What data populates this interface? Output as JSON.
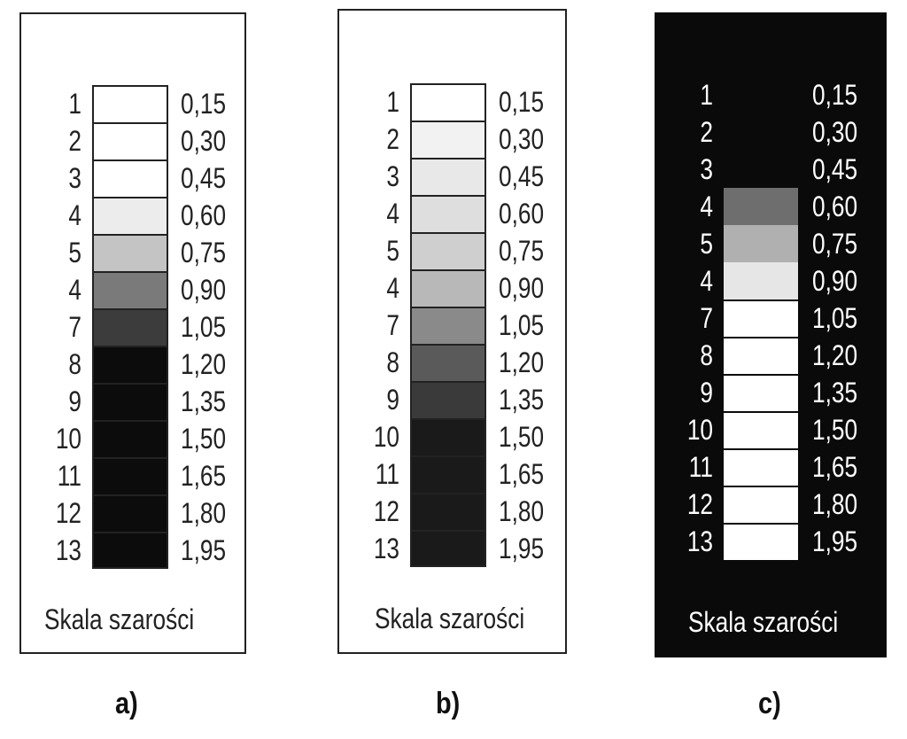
{
  "caption": "Skala szarości",
  "panels": [
    {
      "tag": "a)",
      "numbers": [
        "1",
        "2",
        "3",
        "4",
        "5",
        "4",
        "7",
        "8",
        "9",
        "10",
        "11",
        "12",
        "13"
      ],
      "values": [
        "0,15",
        "0,30",
        "0,45",
        "0,60",
        "0,75",
        "0,90",
        "1,05",
        "1,20",
        "1,35",
        "1,50",
        "1,65",
        "1,80",
        "1,95"
      ],
      "colors": [
        "#ffffff",
        "#ffffff",
        "#ffffff",
        "#ececec",
        "#c4c4c4",
        "#7a7a7a",
        "#3c3c3c",
        "#0c0c0c",
        "#0c0c0c",
        "#0c0c0c",
        "#0c0c0c",
        "#0c0c0c",
        "#0c0c0c"
      ]
    },
    {
      "tag": "b)",
      "numbers": [
        "1",
        "2",
        "3",
        "4",
        "5",
        "4",
        "7",
        "8",
        "9",
        "10",
        "11",
        "12",
        "13"
      ],
      "values": [
        "0,15",
        "0,30",
        "0,45",
        "0,60",
        "0,75",
        "0,90",
        "1,05",
        "1,20",
        "1,35",
        "1,50",
        "1,65",
        "1,80",
        "1,95"
      ],
      "colors": [
        "#ffffff",
        "#f2f2f2",
        "#e8e8e8",
        "#dedede",
        "#cfcfcf",
        "#b8b8b8",
        "#8a8a8a",
        "#5a5a5a",
        "#3a3a3a",
        "#1a1a1a",
        "#1a1a1a",
        "#1a1a1a",
        "#1a1a1a"
      ]
    },
    {
      "tag": "c)",
      "numbers": [
        "1",
        "2",
        "3",
        "4",
        "5",
        "4",
        "7",
        "8",
        "9",
        "10",
        "11",
        "12",
        "13"
      ],
      "values": [
        "0,15",
        "0,30",
        "0,45",
        "0,60",
        "0,75",
        "0,90",
        "1,05",
        "1,20",
        "1,35",
        "1,50",
        "1,65",
        "1,80",
        "1,95"
      ],
      "colors": [
        "#0a0a0a",
        "#0a0a0a",
        "#0a0a0a",
        "#6e6e6e",
        "#b0b0b0",
        "#e6e6e6",
        "#ffffff",
        "#ffffff",
        "#ffffff",
        "#ffffff",
        "#ffffff",
        "#ffffff",
        "#ffffff"
      ]
    }
  ]
}
